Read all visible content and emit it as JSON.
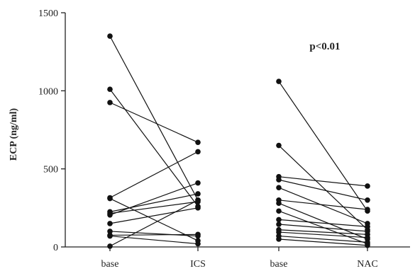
{
  "chart_data": {
    "type": "scatter",
    "ylabel": "ECP (ng/ml)",
    "ylim": [
      0,
      1500
    ],
    "yticks": [
      0,
      500,
      1000,
      1500
    ],
    "categories": [
      "base",
      "ICS",
      "base",
      "NAC"
    ],
    "annotation": "p<0.01",
    "groups": [
      {
        "from_category": "base",
        "to_category": "ICS",
        "pairs": [
          [
            1350,
            300
          ],
          [
            1010,
            260
          ],
          [
            925,
            670
          ],
          [
            315,
            610
          ],
          [
            310,
            40
          ],
          [
            225,
            340
          ],
          [
            215,
            290
          ],
          [
            205,
            410
          ],
          [
            150,
            250
          ],
          [
            100,
            70
          ],
          [
            75,
            80
          ],
          [
            70,
            20
          ],
          [
            5,
            300
          ]
        ]
      },
      {
        "from_category": "base",
        "to_category": "NAC",
        "pairs": [
          [
            1060,
            230
          ],
          [
            650,
            110
          ],
          [
            450,
            390
          ],
          [
            430,
            300
          ],
          [
            380,
            150
          ],
          [
            300,
            240
          ],
          [
            280,
            50
          ],
          [
            230,
            20
          ],
          [
            175,
            130
          ],
          [
            145,
            100
          ],
          [
            110,
            80
          ],
          [
            95,
            60
          ],
          [
            70,
            30
          ],
          [
            50,
            10
          ]
        ]
      }
    ]
  }
}
